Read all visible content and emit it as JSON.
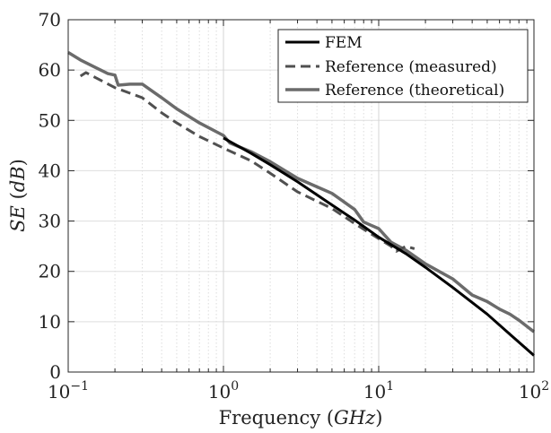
{
  "chart_data": {
    "type": "line",
    "xscale": "log",
    "xlim": [
      0.1,
      100
    ],
    "ylim": [
      0,
      70
    ],
    "grid": true,
    "legend_position": "top-right",
    "xlabel": "Frequency (GHz)",
    "xlabel_parts": {
      "text": "Frequency (",
      "math": "GHz",
      "close": ")"
    },
    "ylabel": "SE (dB)",
    "ylabel_parts": {
      "math1": "SE",
      "text": " (",
      "math2": "dB",
      "close": ")"
    },
    "xticks": [
      {
        "value": 0.1,
        "base": "10",
        "exp": "−1"
      },
      {
        "value": 1,
        "base": "10",
        "exp": "0"
      },
      {
        "value": 10,
        "base": "10",
        "exp": "1"
      },
      {
        "value": 100,
        "base": "10",
        "exp": "2"
      }
    ],
    "yticks": [
      {
        "value": 0,
        "label": "0"
      },
      {
        "value": 10,
        "label": "10"
      },
      {
        "value": 20,
        "label": "20"
      },
      {
        "value": 30,
        "label": "30"
      },
      {
        "value": 40,
        "label": "40"
      },
      {
        "value": 50,
        "label": "50"
      },
      {
        "value": 60,
        "label": "60"
      },
      {
        "value": 70,
        "label": "70"
      }
    ],
    "series": [
      {
        "name": "FEM",
        "color": "#000000",
        "dash": "solid",
        "points": [
          [
            1.0,
            46.5
          ],
          [
            1.5,
            43.5
          ],
          [
            2,
            41.2
          ],
          [
            3,
            37.8
          ],
          [
            5,
            33.2
          ],
          [
            7,
            30.2
          ],
          [
            10,
            26.8
          ],
          [
            15,
            23.5
          ],
          [
            20,
            20.8
          ],
          [
            30,
            16.8
          ],
          [
            50,
            11.5
          ],
          [
            70,
            7.5
          ],
          [
            100,
            3.3
          ]
        ]
      },
      {
        "name": "Reference (measured)",
        "color": "#505050",
        "dash": "dashed",
        "points": [
          [
            0.12,
            58.8
          ],
          [
            0.13,
            59.5
          ],
          [
            0.15,
            58.5
          ],
          [
            0.2,
            56.5
          ],
          [
            0.3,
            54.5
          ],
          [
            0.4,
            51.5
          ],
          [
            0.5,
            49.5
          ],
          [
            0.7,
            46.8
          ],
          [
            1,
            44.5
          ],
          [
            1.5,
            42
          ],
          [
            2,
            39.5
          ],
          [
            3,
            35.8
          ],
          [
            5,
            32.5
          ],
          [
            7,
            29.5
          ],
          [
            10,
            26.5
          ],
          [
            12,
            25
          ],
          [
            13,
            24
          ],
          [
            15,
            25
          ],
          [
            17,
            24.5
          ]
        ]
      },
      {
        "name": "Reference (theoretical)",
        "color": "#6b6b6b",
        "dash": "solid",
        "points": [
          [
            0.1,
            63.5
          ],
          [
            0.12,
            62
          ],
          [
            0.15,
            60.5
          ],
          [
            0.18,
            59.3
          ],
          [
            0.2,
            59
          ],
          [
            0.21,
            57
          ],
          [
            0.25,
            57.2
          ],
          [
            0.3,
            57.2
          ],
          [
            0.4,
            54.5
          ],
          [
            0.5,
            52.3
          ],
          [
            0.7,
            49.5
          ],
          [
            1,
            47
          ],
          [
            1.1,
            45.5
          ],
          [
            1.5,
            43.8
          ],
          [
            2,
            41.8
          ],
          [
            3,
            38.5
          ],
          [
            4,
            36.8
          ],
          [
            5,
            35.5
          ],
          [
            7,
            32.3
          ],
          [
            8,
            29.8
          ],
          [
            10,
            28.5
          ],
          [
            12,
            25.8
          ],
          [
            15,
            24.2
          ],
          [
            20,
            21.5
          ],
          [
            30,
            18.5
          ],
          [
            40,
            15.3
          ],
          [
            50,
            14
          ],
          [
            60,
            12.5
          ],
          [
            70,
            11.5
          ],
          [
            80,
            10.3
          ],
          [
            100,
            8
          ]
        ]
      }
    ]
  }
}
